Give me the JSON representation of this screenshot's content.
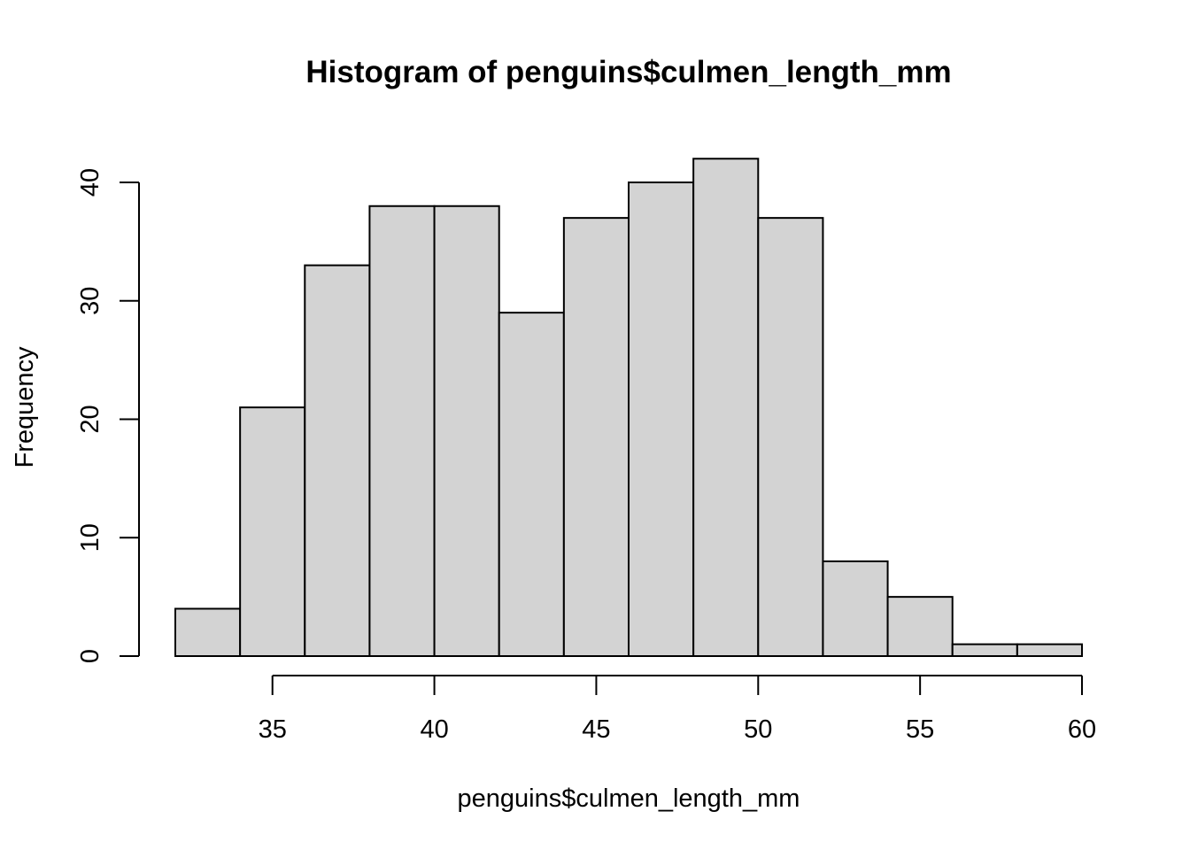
{
  "chart_data": {
    "type": "bar",
    "title": "Histogram of penguins$culmen_length_mm",
    "xlabel": "penguins$culmen_length_mm",
    "ylabel": "Frequency",
    "bins": [
      {
        "from": 32,
        "to": 34,
        "count": 4
      },
      {
        "from": 34,
        "to": 36,
        "count": 21
      },
      {
        "from": 36,
        "to": 38,
        "count": 33
      },
      {
        "from": 38,
        "to": 40,
        "count": 38
      },
      {
        "from": 40,
        "to": 42,
        "count": 38
      },
      {
        "from": 42,
        "to": 44,
        "count": 29
      },
      {
        "from": 44,
        "to": 46,
        "count": 37
      },
      {
        "from": 46,
        "to": 48,
        "count": 40
      },
      {
        "from": 48,
        "to": 50,
        "count": 42
      },
      {
        "from": 50,
        "to": 52,
        "count": 37
      },
      {
        "from": 52,
        "to": 54,
        "count": 8
      },
      {
        "from": 54,
        "to": 56,
        "count": 5
      },
      {
        "from": 56,
        "to": 58,
        "count": 1
      },
      {
        "from": 58,
        "to": 60,
        "count": 1
      }
    ],
    "xticks": [
      35,
      40,
      45,
      50,
      55,
      60
    ],
    "yticks": [
      0,
      10,
      20,
      30,
      40
    ],
    "xlim": [
      32,
      60
    ],
    "ylim": [
      0,
      42
    ],
    "bar_color": "#d3d3d3",
    "grid": false
  }
}
